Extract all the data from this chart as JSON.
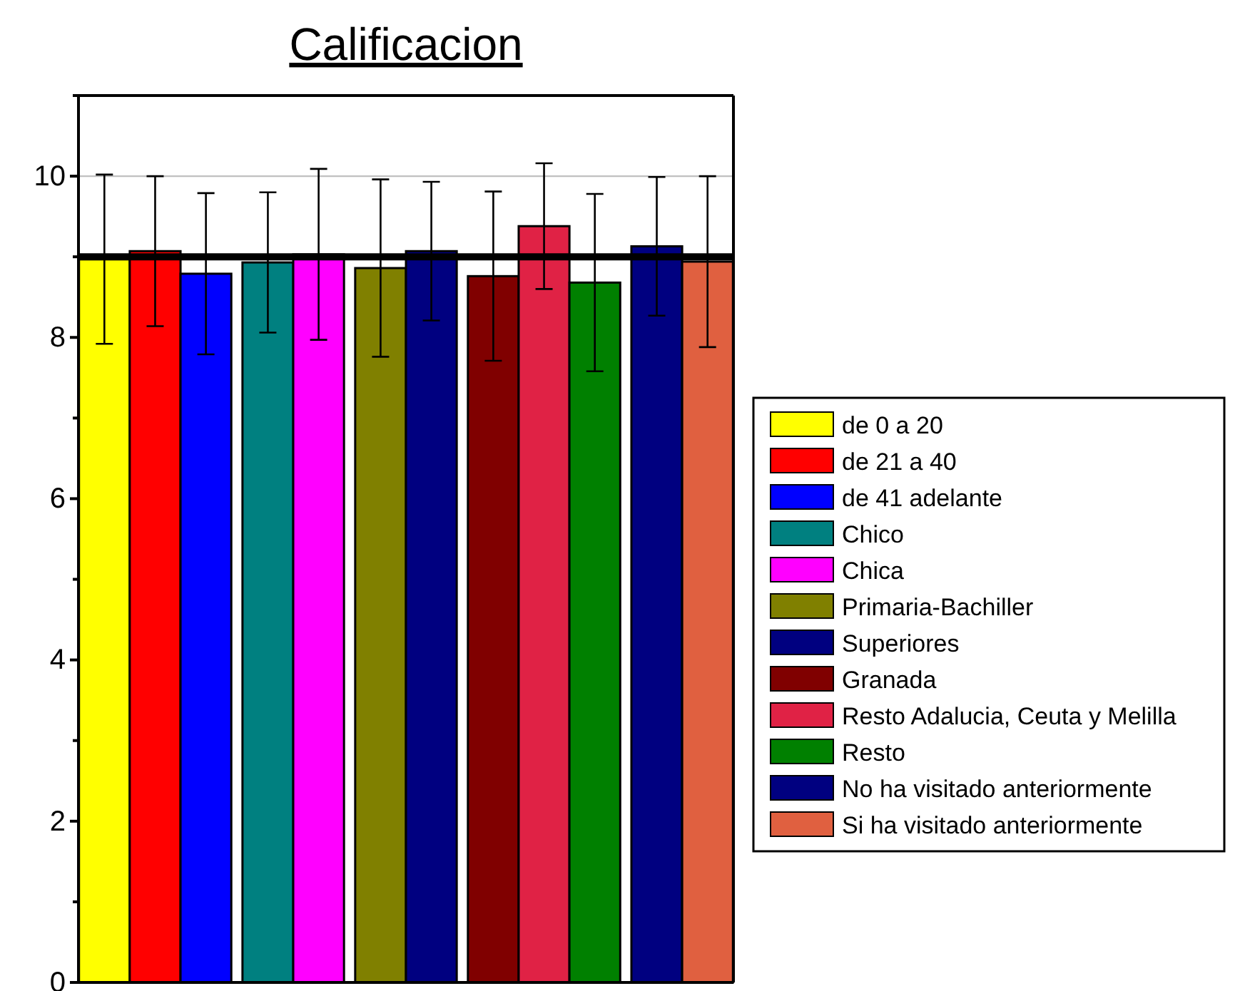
{
  "chart_data": {
    "type": "bar",
    "title": "Calificacion",
    "categories": [
      null,
      null,
      null,
      null,
      null
    ],
    "ylim": [
      0,
      11
    ],
    "yticks": [
      0,
      {
        "value": 1,
        "label": null
      },
      2,
      {
        "value": 3,
        "label": null
      },
      4,
      {
        "value": 5,
        "label": null
      },
      6,
      {
        "value": 7,
        "label": null
      },
      8,
      {
        "value": 9,
        "label": null
      },
      10,
      {
        "value": 11,
        "label": null
      }
    ],
    "legend": "right",
    "ref_lines": [
      {
        "axis": "y",
        "value": 10,
        "color": "#c0c0c0",
        "line_style": "solid"
      },
      {
        "axis": "y",
        "value": 9,
        "color": "#000000",
        "line_style": "solid"
      }
    ],
    "series": [
      {
        "name": "de 0  a 20",
        "color": "#ffff00",
        "values": [
          8.97,
          null,
          null,
          null,
          null
        ],
        "errors": [
          1.05,
          null,
          null,
          null,
          null
        ]
      },
      {
        "name": "de 21 a 40",
        "color": "#ff0000",
        "values": [
          9.07,
          null,
          null,
          null,
          null
        ],
        "errors": [
          0.93,
          null,
          null,
          null,
          null
        ]
      },
      {
        "name": "de 41 adelante",
        "color": "#0000ff",
        "values": [
          8.79,
          null,
          null,
          null,
          null
        ],
        "errors": [
          1.0,
          null,
          null,
          null,
          null
        ]
      },
      {
        "name": "Chico",
        "color": "#008080",
        "values": [
          null,
          8.93,
          null,
          null,
          null
        ],
        "errors": [
          null,
          0.87,
          null,
          null,
          null
        ]
      },
      {
        "name": "Chica",
        "color": "#ff00ff",
        "values": [
          null,
          9.03,
          null,
          null,
          null
        ],
        "errors": [
          null,
          1.06,
          null,
          null,
          null
        ]
      },
      {
        "name": "Primaria-Bachiller",
        "color": "#808000",
        "values": [
          null,
          null,
          8.86,
          null,
          null
        ],
        "errors": [
          null,
          null,
          1.1,
          null,
          null
        ]
      },
      {
        "name": "Superiores",
        "color": "#000080",
        "values": [
          null,
          null,
          9.07,
          null,
          null
        ],
        "errors": [
          null,
          null,
          0.86,
          null,
          null
        ]
      },
      {
        "name": "Granada",
        "color": "#800000",
        "values": [
          null,
          null,
          null,
          8.76,
          null
        ],
        "errors": [
          null,
          null,
          null,
          1.05,
          null
        ]
      },
      {
        "name": "Resto Adalucia, Ceuta y Melilla",
        "color": "#e02245",
        "values": [
          null,
          null,
          null,
          9.38,
          null
        ],
        "errors": [
          null,
          null,
          null,
          0.78,
          null
        ]
      },
      {
        "name": "Resto",
        "color": "#008000",
        "values": [
          null,
          null,
          null,
          8.68,
          null
        ],
        "errors": [
          null,
          null,
          null,
          1.1,
          null
        ]
      },
      {
        "name": "No ha visitado anteriormente",
        "color": "#000080",
        "values": [
          null,
          null,
          null,
          null,
          9.13
        ],
        "errors": [
          null,
          null,
          null,
          null,
          0.86
        ]
      },
      {
        "name": "Si ha visitado anteriormente",
        "color": "#e06040",
        "values": [
          null,
          null,
          null,
          null,
          8.94
        ],
        "errors": [
          null,
          null,
          null,
          null,
          1.06
        ]
      }
    ]
  }
}
